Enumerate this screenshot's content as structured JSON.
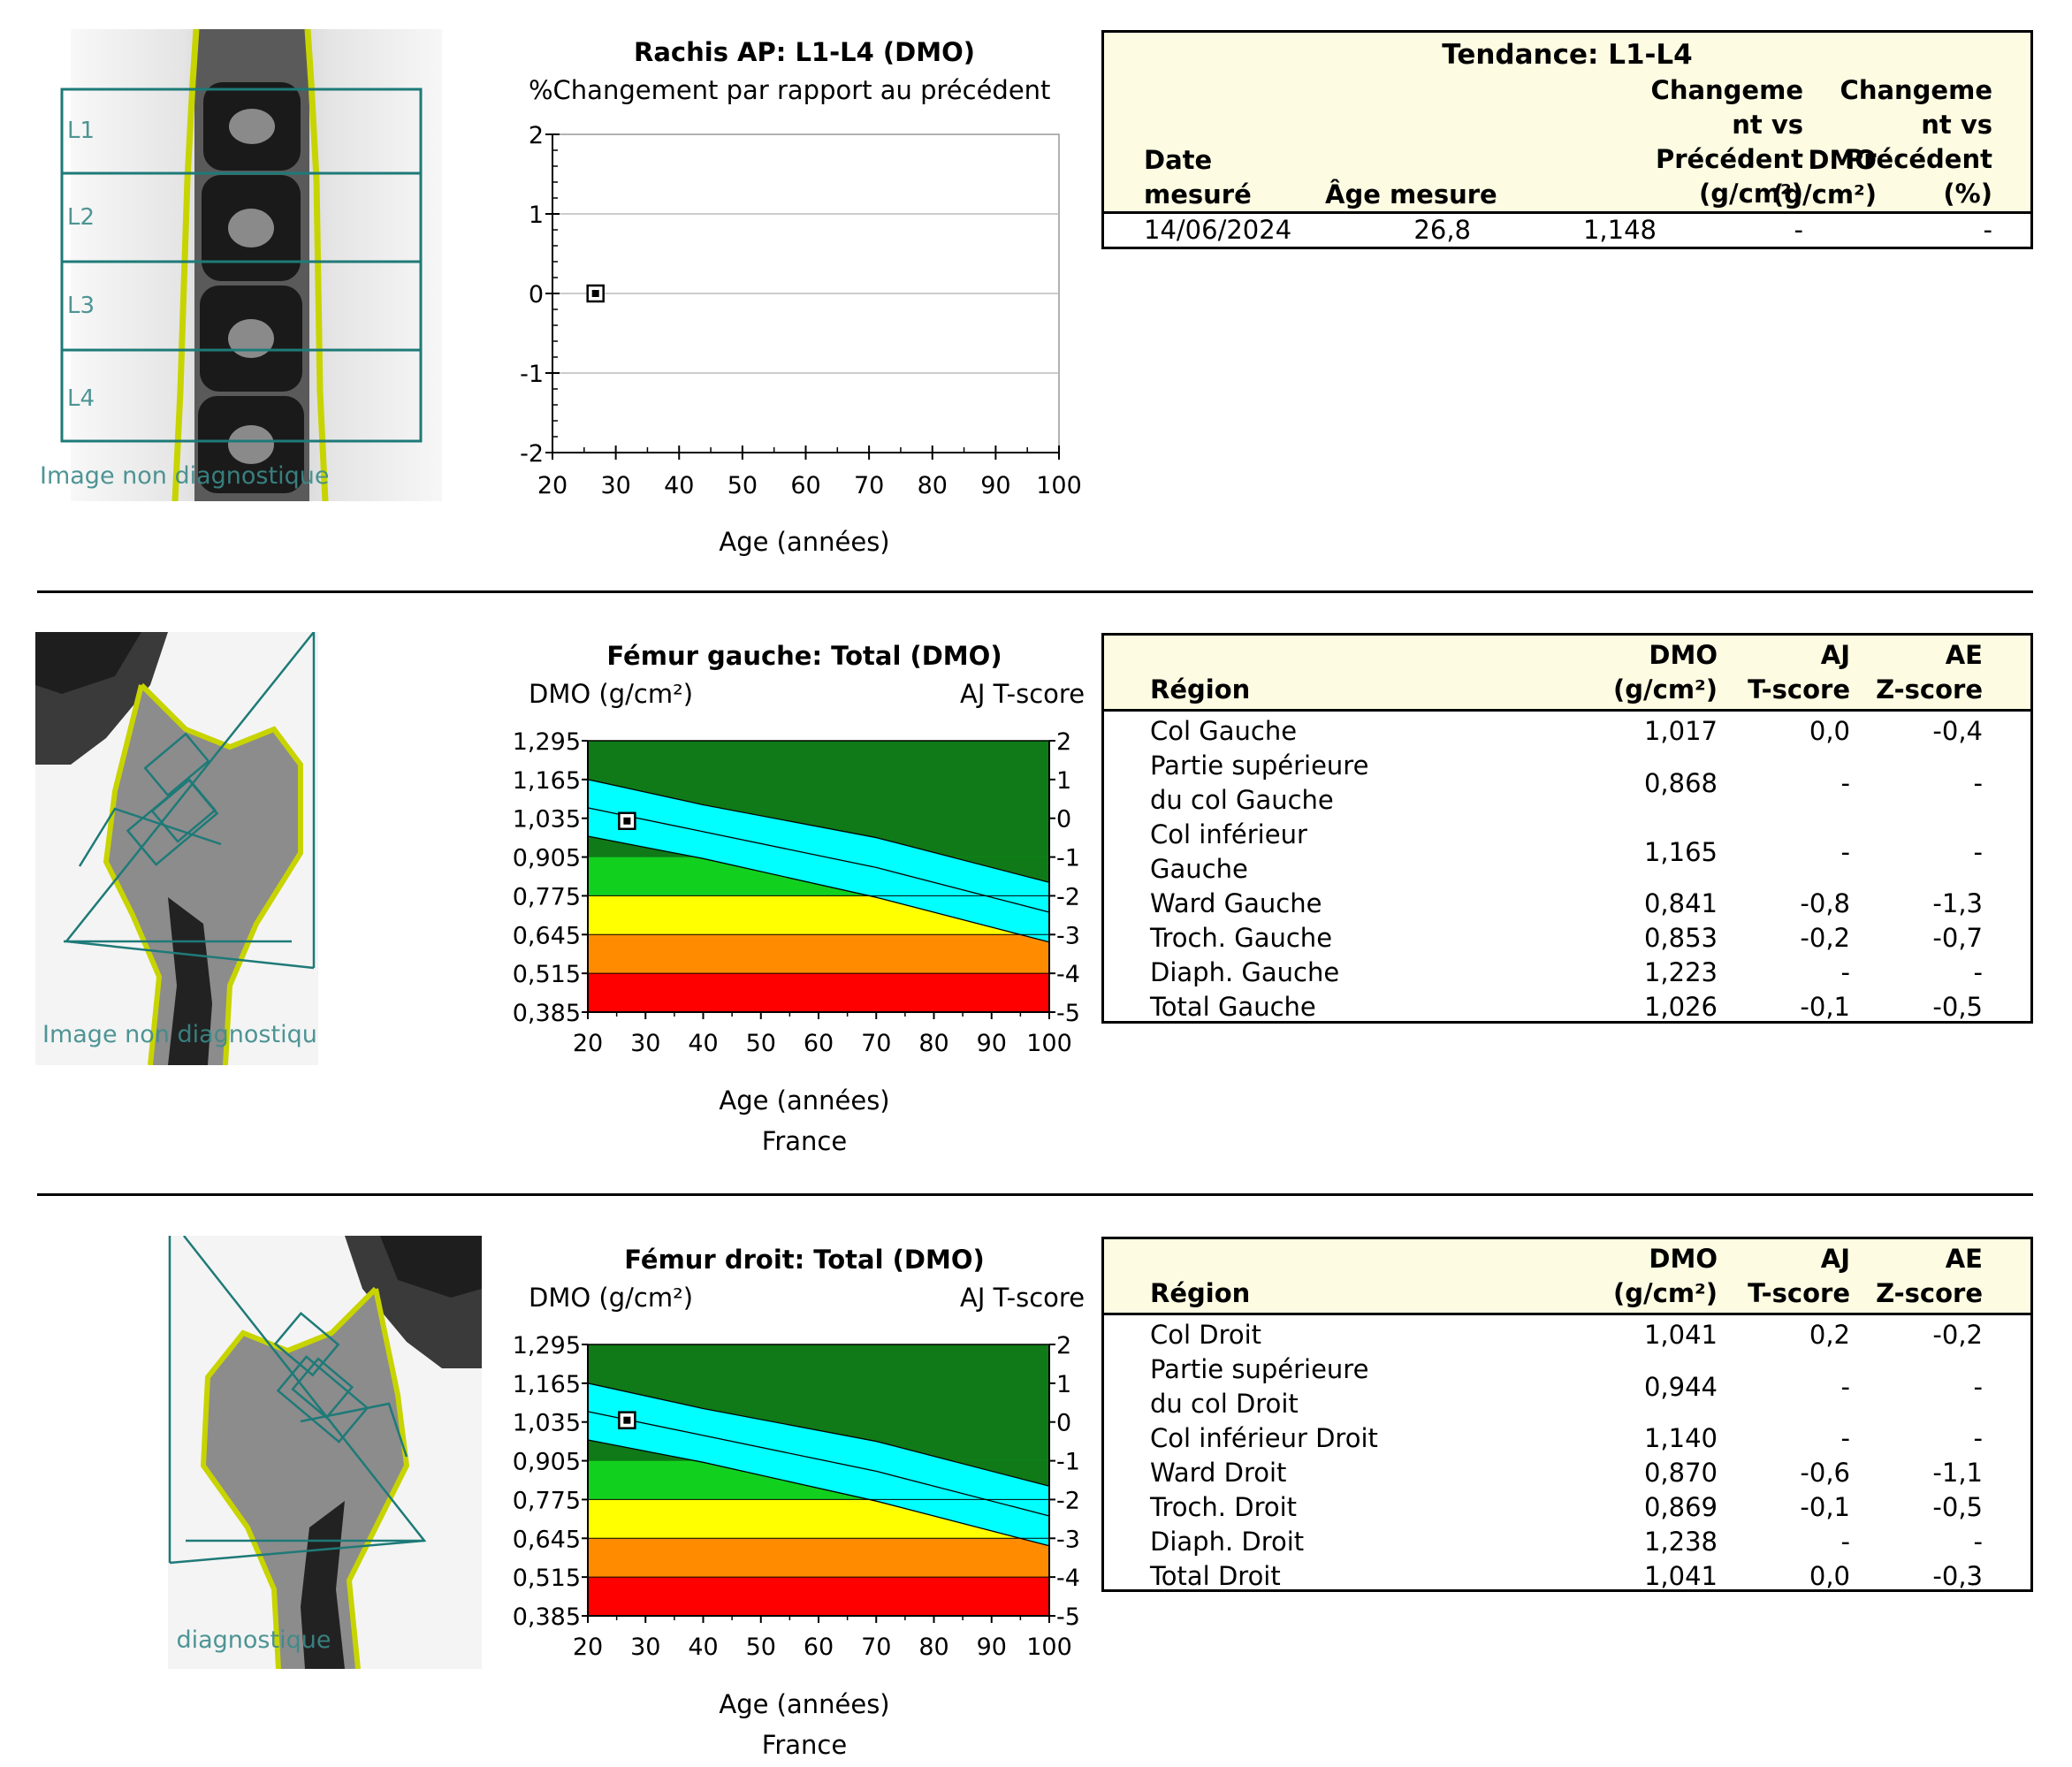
{
  "colors": {
    "teal": "#1e7a78",
    "outline": "#c7d400",
    "dark_green": "#0f7a17",
    "green": "#12d11e",
    "cyan": "#00ffff",
    "yellow": "#ffff00",
    "orange": "#ff8c00",
    "red": "#ff0000",
    "header_bg": "#fdfbe2"
  },
  "watermark": "Image non diagnostique",
  "spine": {
    "vertebra_labels": [
      "L1",
      "L2",
      "L3",
      "L4"
    ],
    "chart": {
      "title": "Rachis AP: L1-L4  (DMO)",
      "subtitle": "%Changement par rapport au précédent",
      "xlabel": "Age (années)",
      "y_ticks": [
        "2",
        "1",
        "0",
        "-1",
        "-2"
      ],
      "x_ticks": [
        "20",
        "30",
        "40",
        "50",
        "60",
        "70",
        "80",
        "90",
        "100"
      ]
    },
    "table": {
      "title": "Tendance: L1-L4",
      "headers": {
        "date": [
          "Date",
          "mesuré"
        ],
        "age": "Âge mesure",
        "dmo": [
          "DMO",
          "(g/cm²)"
        ],
        "chg_abs": [
          "Changeme",
          "nt vs",
          "Précédent",
          "(g/cm²)"
        ],
        "chg_pct": [
          "Changeme",
          "nt vs",
          "Précédent",
          "(%)"
        ]
      },
      "rows": [
        {
          "date": "14/06/2024",
          "age": "26,8",
          "dmo": "1,148",
          "chg_abs": "-",
          "chg_pct": "-"
        }
      ]
    }
  },
  "left_femur": {
    "chart": {
      "title": "Fémur gauche: Total (DMO)",
      "ylabel": "DMO (g/cm²)",
      "y2label": "AJ T-score",
      "xlabel": "Age (années)",
      "footer": "France",
      "y_ticks": [
        "1,295",
        "1,165",
        "1,035",
        "0,905",
        "0,775",
        "0,645",
        "0,515",
        "0,385"
      ],
      "y2_ticks": [
        "2",
        "1",
        "0",
        "-1",
        "-2",
        "-3",
        "-4",
        "-5"
      ],
      "x_ticks": [
        "20",
        "30",
        "40",
        "50",
        "60",
        "70",
        "80",
        "90",
        "100"
      ]
    },
    "table": {
      "headers": {
        "region": "Région",
        "dmo": [
          "DMO",
          "(g/cm²)"
        ],
        "t": [
          "AJ",
          "T-score"
        ],
        "z": [
          "AE",
          "Z-score"
        ]
      },
      "rows": [
        {
          "region": [
            "Col Gauche"
          ],
          "dmo": "1,017",
          "t": "0,0",
          "z": "-0,4"
        },
        {
          "region": [
            "Partie supérieure",
            "du col Gauche"
          ],
          "dmo": "0,868",
          "t": "-",
          "z": "-"
        },
        {
          "region": [
            "Col inférieur",
            "Gauche"
          ],
          "dmo": "1,165",
          "t": "-",
          "z": "-"
        },
        {
          "region": [
            "Ward Gauche"
          ],
          "dmo": "0,841",
          "t": "-0,8",
          "z": "-1,3"
        },
        {
          "region": [
            "Troch. Gauche"
          ],
          "dmo": "0,853",
          "t": "-0,2",
          "z": "-0,7"
        },
        {
          "region": [
            "Diaph. Gauche"
          ],
          "dmo": "1,223",
          "t": "-",
          "z": "-"
        },
        {
          "region": [
            "Total Gauche"
          ],
          "dmo": "1,026",
          "t": "-0,1",
          "z": "-0,5"
        }
      ]
    }
  },
  "right_femur": {
    "chart": {
      "title": "Fémur droit: Total (DMO)",
      "ylabel": "DMO (g/cm²)",
      "y2label": "AJ T-score",
      "xlabel": "Age (années)",
      "footer": "France",
      "y_ticks": [
        "1,295",
        "1,165",
        "1,035",
        "0,905",
        "0,775",
        "0,645",
        "0,515",
        "0,385"
      ],
      "y2_ticks": [
        "2",
        "1",
        "0",
        "-1",
        "-2",
        "-3",
        "-4",
        "-5"
      ],
      "x_ticks": [
        "20",
        "30",
        "40",
        "50",
        "60",
        "70",
        "80",
        "90",
        "100"
      ]
    },
    "table": {
      "headers": {
        "region": "Région",
        "dmo": [
          "DMO",
          "(g/cm²)"
        ],
        "t": [
          "AJ",
          "T-score"
        ],
        "z": [
          "AE",
          "Z-score"
        ]
      },
      "rows": [
        {
          "region": [
            "Col Droit"
          ],
          "dmo": "1,041",
          "t": "0,2",
          "z": "-0,2"
        },
        {
          "region": [
            "Partie supérieure",
            "du col Droit"
          ],
          "dmo": "0,944",
          "t": "-",
          "z": "-"
        },
        {
          "region": [
            "Col inférieur Droit"
          ],
          "dmo": "1,140",
          "t": "-",
          "z": "-"
        },
        {
          "region": [
            "Ward Droit"
          ],
          "dmo": "0,870",
          "t": "-0,6",
          "z": "-1,1"
        },
        {
          "region": [
            "Troch. Droit"
          ],
          "dmo": "0,869",
          "t": "-0,1",
          "z": "-0,5"
        },
        {
          "region": [
            "Diaph. Droit"
          ],
          "dmo": "1,238",
          "t": "-",
          "z": "-"
        },
        {
          "region": [
            "Total Droit"
          ],
          "dmo": "1,041",
          "t": "0,0",
          "z": "-0,3"
        }
      ]
    }
  },
  "chart_data": [
    {
      "type": "scatter",
      "title": "Rachis AP: L1-L4  (DMO)",
      "subtitle": "%Changement par rapport au précédent",
      "xlabel": "Age (années)",
      "xlim": [
        20,
        100
      ],
      "ylim": [
        -2,
        2
      ],
      "grid": true,
      "points": [
        {
          "x": 26.8,
          "y": 0
        }
      ]
    },
    {
      "type": "area",
      "title": "Fémur gauche: Total (DMO)",
      "xlabel": "Age (années)",
      "ylabel": "DMO (g/cm²)",
      "y2label": "AJ T-score",
      "xlim": [
        20,
        100
      ],
      "ylim": [
        0.385,
        1.295
      ],
      "y2lim": [
        -5,
        2
      ],
      "bands": {
        "x": [
          20,
          40,
          70,
          100
        ],
        "upper": [
          1.165,
          1.08,
          0.97,
          0.82
        ],
        "median": [
          1.07,
          0.99,
          0.87,
          0.72
        ],
        "lower": [
          0.975,
          0.9,
          0.77,
          0.62
        ],
        "osteopenia_min": 0.645,
        "osteoporosis_min": 0.515,
        "below_min": 0.385,
        "tscore_minus1": 0.905,
        "tscore_minus2_5": 0.71
      },
      "points": [
        {
          "x": 26.8,
          "y": 1.026
        }
      ]
    },
    {
      "type": "area",
      "title": "Fémur droit: Total (DMO)",
      "xlabel": "Age (années)",
      "ylabel": "DMO (g/cm²)",
      "y2label": "AJ T-score",
      "xlim": [
        20,
        100
      ],
      "ylim": [
        0.385,
        1.295
      ],
      "y2lim": [
        -5,
        2
      ],
      "bands": {
        "x": [
          20,
          40,
          70,
          100
        ],
        "upper": [
          1.165,
          1.08,
          0.97,
          0.82
        ],
        "median": [
          1.07,
          0.99,
          0.87,
          0.72
        ],
        "lower": [
          0.975,
          0.9,
          0.77,
          0.62
        ],
        "osteopenia_min": 0.645,
        "osteoporosis_min": 0.515,
        "below_min": 0.385,
        "tscore_minus1": 0.905,
        "tscore_minus2_5": 0.71
      },
      "points": [
        {
          "x": 26.8,
          "y": 1.041
        }
      ]
    }
  ]
}
